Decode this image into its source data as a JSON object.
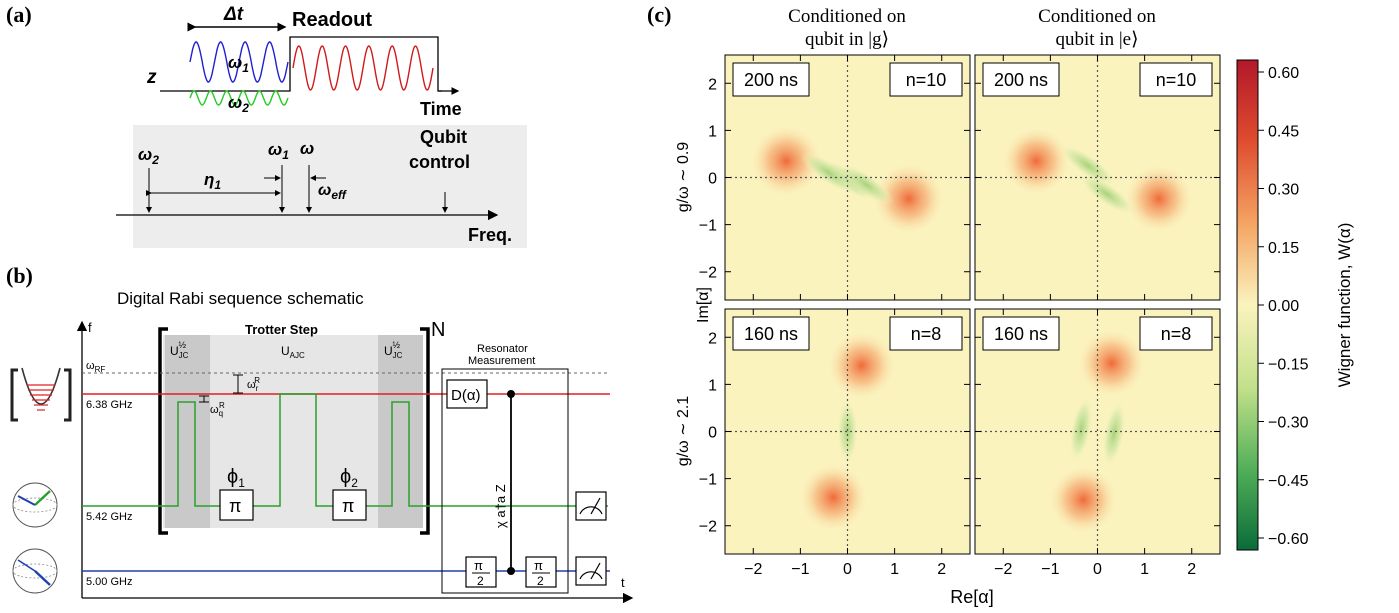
{
  "panel_labels": {
    "a": "(a)",
    "b": "(b)",
    "c": "(c)"
  },
  "panel_a": {
    "delta_t": "Δt",
    "readout": "Readout",
    "z": "z",
    "omega1": "ω",
    "omega1_sub": "1",
    "omega2": "ω",
    "omega2_sub": "2",
    "time": "Time",
    "qubit_control_line1": "Qubit",
    "qubit_control_line2": "control",
    "omega": "ω",
    "eta": "η",
    "eta_sub": "1",
    "omega_eff": "ω",
    "omega_eff_sub": "eff",
    "freq": "Freq.",
    "colors": {
      "omega1_wave": "#1f1fd0",
      "omega2_wave": "#22cc22",
      "readout_wave": "#d01a1a",
      "band": "#ededed"
    }
  },
  "panel_b": {
    "title": "Digital Rabi sequence schematic",
    "f_axis": "f",
    "t_axis": "t",
    "omega_rf": "ω",
    "omega_rf_sub": "RF",
    "freq_6_38": "6.38 GHz",
    "freq_5_42": "5.42 GHz",
    "freq_5_00": "5.00 GHz",
    "trotter_step": "Trotter Step",
    "u_jc_left": "U",
    "u_jc_sub": "JC",
    "u_jc_sup": "½",
    "u_ajc": "U",
    "u_ajc_sub": "AJC",
    "omega_r_r": "ω",
    "omega_r_sub": "r",
    "omega_r_sup": "R",
    "omega_q_r": "ω",
    "omega_q_sub": "q",
    "omega_q_sup": "R",
    "phi1": "ϕ",
    "phi1_sub": "1",
    "phi2": "ϕ",
    "phi2_sub": "2",
    "pi": "π",
    "big_n": "N",
    "resonator_line1": "Resonator",
    "resonator_line2": "Measurement",
    "displacement": "D(α)",
    "pi_half": "π",
    "pi_half_den": "2",
    "chi_label": "χ a†a Z",
    "colors": {
      "resonator": "#e02020",
      "qubit_green": "#2aa02a",
      "qubit_blue": "#2040b0",
      "trotter_dark": "#c9c9c9",
      "trotter_light": "#e6e6e6"
    }
  },
  "panel_c": {
    "col_titles": [
      {
        "line1": "Conditioned on",
        "line2": "qubit in |g⟩"
      },
      {
        "line1": "Conditioned on",
        "line2": "qubit in |e⟩"
      }
    ],
    "row_labels": [
      "g/ω ∼ 0.9",
      "g/ω ∼ 2.1"
    ],
    "ylabel": "Im[α]",
    "xlabel": "Re[α]",
    "colorbar_label": "Wigner function, W(α)",
    "colorbar_ticks": [
      "0.60",
      "0.45",
      "0.30",
      "0.15",
      "0.00",
      "−0.15",
      "−0.30",
      "−0.45",
      "−0.60"
    ],
    "colorbar_range": [
      -0.6,
      0.6
    ]
  },
  "chart_data": [
    {
      "type": "heatmap",
      "xlabel": "",
      "ylabel": "g/ω ∼ 0.9",
      "time_label": "200 ns",
      "n_label": "n=10",
      "x_ticks": [
        -2,
        -1,
        0,
        1,
        2
      ],
      "y_ticks": [
        2,
        1,
        0,
        -1,
        -2
      ],
      "xlim": [
        -2.6,
        2.6
      ],
      "ylim": [
        -2.6,
        2.6
      ],
      "features": [
        {
          "x": -1.3,
          "y": 0.35,
          "w": 0.55,
          "kind": "positive"
        },
        {
          "x": 1.3,
          "y": -0.45,
          "w": 0.55,
          "kind": "positive"
        },
        {
          "x": 0.0,
          "y": -0.05,
          "w": -0.2,
          "kind": "negative"
        },
        {
          "x": -0.4,
          "y": 0.1,
          "w": -0.1,
          "kind": "negative"
        },
        {
          "x": 0.4,
          "y": -0.15,
          "w": -0.1,
          "kind": "negative"
        }
      ]
    },
    {
      "type": "heatmap",
      "xlabel": "",
      "ylabel": "",
      "time_label": "200 ns",
      "n_label": "n=10",
      "x_ticks": [
        -2,
        -1,
        0,
        1,
        2
      ],
      "y_ticks": [
        2,
        1,
        0,
        -1,
        -2
      ],
      "xlim": [
        -2.6,
        2.6
      ],
      "ylim": [
        -2.6,
        2.6
      ],
      "features": [
        {
          "x": -1.3,
          "y": 0.35,
          "w": 0.5,
          "kind": "positive"
        },
        {
          "x": 1.3,
          "y": -0.45,
          "w": 0.5,
          "kind": "positive"
        },
        {
          "x": -0.2,
          "y": 0.25,
          "w": -0.15,
          "kind": "negative"
        },
        {
          "x": 0.2,
          "y": -0.35,
          "w": -0.15,
          "kind": "negative"
        }
      ]
    },
    {
      "type": "heatmap",
      "xlabel": "Re[α]",
      "ylabel": "g/ω ∼ 2.1",
      "time_label": "160 ns",
      "n_label": "n=8",
      "x_ticks": [
        -2,
        -1,
        0,
        1,
        2
      ],
      "y_ticks": [
        2,
        1,
        0,
        -1,
        -2
      ],
      "xlim": [
        -2.6,
        2.6
      ],
      "ylim": [
        -2.6,
        2.6
      ],
      "features": [
        {
          "x": 0.3,
          "y": 1.4,
          "w": 0.5,
          "kind": "positive"
        },
        {
          "x": -0.3,
          "y": -1.4,
          "w": 0.5,
          "kind": "positive"
        },
        {
          "x": 0.0,
          "y": 0.0,
          "w": -0.25,
          "kind": "negative"
        }
      ]
    },
    {
      "type": "heatmap",
      "xlabel": "Re[α]",
      "ylabel": "",
      "time_label": "160 ns",
      "n_label": "n=8",
      "x_ticks": [
        -2,
        -1,
        0,
        1,
        2
      ],
      "y_ticks": [
        2,
        1,
        0,
        -1,
        -2
      ],
      "xlim": [
        -2.6,
        2.6
      ],
      "ylim": [
        -2.6,
        2.6
      ],
      "features": [
        {
          "x": 0.3,
          "y": 1.45,
          "w": 0.5,
          "kind": "positive"
        },
        {
          "x": -0.3,
          "y": -1.45,
          "w": 0.5,
          "kind": "positive"
        },
        {
          "x": -0.35,
          "y": 0.05,
          "w": -0.15,
          "kind": "negative"
        },
        {
          "x": 0.35,
          "y": -0.05,
          "w": -0.15,
          "kind": "negative"
        }
      ]
    }
  ]
}
